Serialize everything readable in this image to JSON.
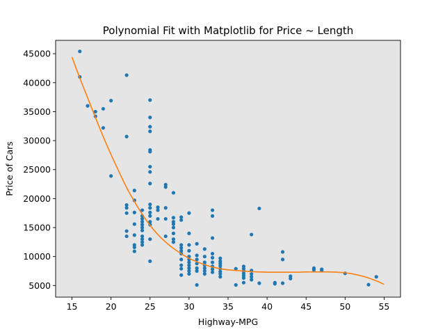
{
  "chart_data": {
    "type": "scatter",
    "title": "Polynomial Fit with Matplotlib for Price ~ Length",
    "xlabel": "Highway-MPG",
    "ylabel": "Price of Cars",
    "xlim": [
      12.9,
      57.1
    ],
    "ylim": [
      3000,
      47300
    ],
    "xticks": [
      15,
      20,
      25,
      30,
      35,
      40,
      45,
      50,
      55
    ],
    "yticks": [
      5000,
      10000,
      15000,
      20000,
      25000,
      30000,
      35000,
      40000,
      45000
    ],
    "grid": false,
    "background": "#e5e5e5",
    "series": [
      {
        "kind": "points",
        "color": "#1f77b4",
        "points": [
          [
            16,
            45400
          ],
          [
            16,
            41000
          ],
          [
            17,
            36000
          ],
          [
            18,
            35000
          ],
          [
            18,
            34200
          ],
          [
            19,
            35500
          ],
          [
            19,
            32200
          ],
          [
            20,
            36900
          ],
          [
            20,
            23900
          ],
          [
            22,
            41300
          ],
          [
            22,
            30700
          ],
          [
            22,
            18900
          ],
          [
            22,
            18400
          ],
          [
            22,
            17500
          ],
          [
            22,
            14400
          ],
          [
            22,
            13500
          ],
          [
            23,
            21400
          ],
          [
            23,
            19700
          ],
          [
            23,
            17600
          ],
          [
            23,
            15600
          ],
          [
            23,
            13700
          ],
          [
            23,
            12000
          ],
          [
            23,
            11600
          ],
          [
            23,
            10900
          ],
          [
            24,
            18000
          ],
          [
            24,
            17000
          ],
          [
            24,
            16500
          ],
          [
            24,
            16000
          ],
          [
            24,
            15500
          ],
          [
            24,
            15000
          ],
          [
            24,
            14500
          ],
          [
            24,
            13500
          ],
          [
            24,
            13000
          ],
          [
            24,
            12500
          ],
          [
            24,
            12000
          ],
          [
            25,
            37000
          ],
          [
            25,
            34000
          ],
          [
            25,
            32400
          ],
          [
            25,
            31600
          ],
          [
            25,
            28400
          ],
          [
            25,
            28100
          ],
          [
            25,
            25500
          ],
          [
            25,
            24600
          ],
          [
            25,
            22600
          ],
          [
            25,
            19000
          ],
          [
            25,
            18400
          ],
          [
            25,
            17600
          ],
          [
            25,
            17000
          ],
          [
            25,
            16000
          ],
          [
            25,
            15500
          ],
          [
            25,
            13000
          ],
          [
            25,
            9200
          ],
          [
            26,
            18500
          ],
          [
            26,
            18000
          ],
          [
            26,
            16500
          ],
          [
            27,
            22400
          ],
          [
            27,
            22000
          ],
          [
            27,
            18400
          ],
          [
            27,
            16500
          ],
          [
            27,
            13500
          ],
          [
            28,
            21000
          ],
          [
            28,
            16700
          ],
          [
            28,
            16000
          ],
          [
            28,
            15600
          ],
          [
            28,
            15000
          ],
          [
            28,
            14000
          ],
          [
            28,
            13000
          ],
          [
            28,
            12500
          ],
          [
            29,
            16800
          ],
          [
            29,
            16300
          ],
          [
            29,
            12000
          ],
          [
            29,
            11500
          ],
          [
            29,
            11000
          ],
          [
            29,
            10500
          ],
          [
            29,
            9500
          ],
          [
            29,
            8500
          ],
          [
            29,
            7900
          ],
          [
            29,
            6800
          ],
          [
            30,
            17500
          ],
          [
            30,
            14000
          ],
          [
            30,
            12000
          ],
          [
            30,
            11000
          ],
          [
            30,
            10000
          ],
          [
            30,
            9500
          ],
          [
            30,
            9000
          ],
          [
            30,
            8500
          ],
          [
            30,
            8000
          ],
          [
            30,
            7500
          ],
          [
            30,
            7000
          ],
          [
            31,
            12200
          ],
          [
            31,
            10200
          ],
          [
            31,
            9500
          ],
          [
            31,
            8800
          ],
          [
            31,
            8000
          ],
          [
            31,
            7500
          ],
          [
            31,
            5100
          ],
          [
            32,
            11300
          ],
          [
            32,
            10000
          ],
          [
            32,
            9000
          ],
          [
            32,
            8500
          ],
          [
            32,
            8000
          ],
          [
            32,
            7500
          ],
          [
            32,
            7000
          ],
          [
            33,
            18000
          ],
          [
            33,
            17000
          ],
          [
            33,
            13200
          ],
          [
            33,
            10500
          ],
          [
            33,
            9800
          ],
          [
            33,
            9000
          ],
          [
            33,
            8300
          ],
          [
            33,
            7800
          ],
          [
            33,
            7300
          ],
          [
            34,
            9700
          ],
          [
            34,
            9200
          ],
          [
            34,
            8800
          ],
          [
            34,
            8400
          ],
          [
            34,
            7900
          ],
          [
            34,
            7400
          ],
          [
            34,
            7000
          ],
          [
            34,
            6500
          ],
          [
            36,
            7900
          ],
          [
            36,
            5100
          ],
          [
            37,
            8300
          ],
          [
            37,
            7900
          ],
          [
            37,
            7500
          ],
          [
            37,
            7100
          ],
          [
            37,
            6700
          ],
          [
            37,
            6300
          ],
          [
            37,
            5500
          ],
          [
            38,
            13800
          ],
          [
            38,
            7600
          ],
          [
            38,
            7000
          ],
          [
            38,
            6500
          ],
          [
            38,
            6000
          ],
          [
            39,
            18300
          ],
          [
            39,
            5400
          ],
          [
            41,
            5500
          ],
          [
            41,
            5300
          ],
          [
            42,
            10800
          ],
          [
            42,
            9500
          ],
          [
            42,
            5400
          ],
          [
            43,
            6600
          ],
          [
            43,
            6200
          ],
          [
            46,
            8000
          ],
          [
            46,
            7700
          ],
          [
            47,
            7800
          ],
          [
            47,
            7600
          ],
          [
            50,
            7100
          ],
          [
            53,
            5150
          ],
          [
            54,
            6500
          ]
        ]
      },
      {
        "kind": "fit-curve",
        "color": "#ff7f0e",
        "x": [
          15,
          16,
          17,
          18,
          19,
          20,
          21,
          22,
          23,
          24,
          25,
          26,
          27,
          28,
          29,
          30,
          31,
          32,
          33,
          34,
          35,
          36,
          37,
          38,
          39,
          40,
          41,
          42,
          43,
          44,
          45,
          46,
          47,
          48,
          49,
          50,
          51,
          52,
          53,
          54,
          55
        ],
        "y": [
          44400,
          40800,
          37400,
          34000,
          30700,
          27600,
          24700,
          21900,
          19500,
          17300,
          15400,
          13800,
          12500,
          11400,
          10500,
          9700,
          9100,
          8600,
          8200,
          7900,
          7700,
          7600,
          7500,
          7400,
          7350,
          7300,
          7300,
          7300,
          7300,
          7300,
          7350,
          7350,
          7350,
          7350,
          7300,
          7200,
          7000,
          6700,
          6300,
          5800,
          5200
        ]
      }
    ]
  }
}
